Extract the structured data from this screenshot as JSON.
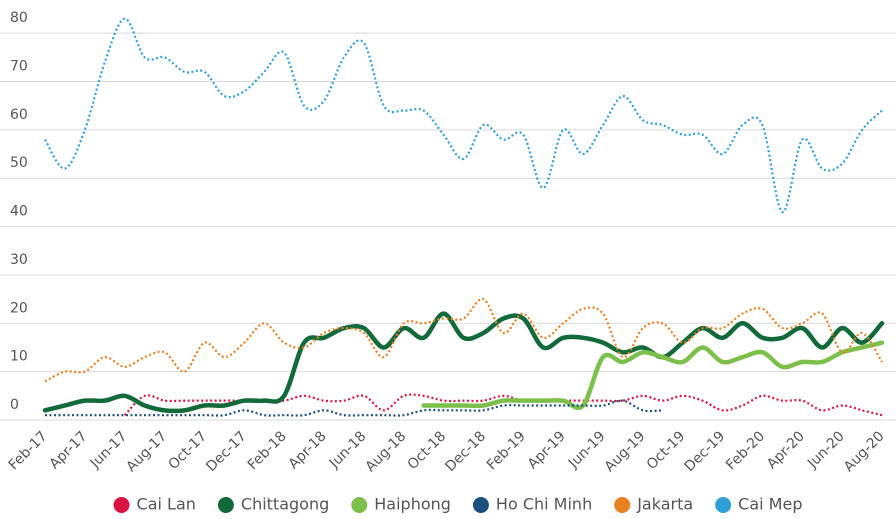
{
  "chart_data": {
    "type": "line",
    "categories": [
      "Feb-17",
      null,
      "Apr-17",
      null,
      "Jun-17",
      null,
      "Aug-17",
      null,
      "Oct-17",
      null,
      "Dec-17",
      null,
      "Feb-18",
      null,
      "Apr-18",
      null,
      "Jun-18",
      null,
      "Aug-18",
      null,
      "Oct-18",
      null,
      "Dec-18",
      null,
      "Feb-19",
      null,
      "Apr-19",
      null,
      "Jun-19",
      null,
      "Aug-19",
      null,
      "Oct-19",
      null,
      "Dec-19",
      null,
      "Feb-20",
      null,
      "Apr-20",
      null,
      "Jun-20",
      null,
      "Aug-20"
    ],
    "series": [
      {
        "name": "Cai Lan",
        "color": "#d9123f",
        "dash": "dotted",
        "values": [
          null,
          null,
          null,
          null,
          1,
          5,
          4,
          4,
          4,
          4,
          4,
          4,
          4,
          5,
          4,
          4,
          5,
          2,
          5,
          5,
          4,
          4,
          4,
          5,
          4,
          4,
          4,
          4,
          4,
          4,
          5,
          4,
          5,
          4,
          2,
          3,
          5,
          4,
          4,
          2,
          3,
          2,
          1
        ]
      },
      {
        "name": "Chittagong",
        "color": "#12693a",
        "dash": "solid",
        "values": [
          2,
          3,
          4,
          4,
          5,
          3,
          2,
          2,
          3,
          3,
          4,
          4,
          5,
          16,
          17,
          19,
          19,
          15,
          19,
          17,
          22,
          17,
          18,
          21,
          21,
          15,
          17,
          17,
          16,
          14,
          15,
          13,
          16,
          19,
          17,
          20,
          17,
          17,
          19,
          15,
          19,
          16,
          20
        ]
      },
      {
        "name": "Haiphong",
        "color": "#7cc04b",
        "dash": "solid",
        "values": [
          null,
          null,
          null,
          null,
          null,
          null,
          null,
          null,
          null,
          null,
          null,
          null,
          null,
          null,
          null,
          null,
          null,
          null,
          null,
          3,
          3,
          3,
          3,
          4,
          4,
          4,
          4,
          3,
          13,
          12,
          14,
          13,
          12,
          15,
          12,
          13,
          14,
          11,
          12,
          12,
          14,
          15,
          16
        ]
      },
      {
        "name": "Ho Chi Minh",
        "color": "#1a4f7e",
        "dash": "dotted",
        "values": [
          1,
          1,
          1,
          1,
          1,
          1,
          1,
          1,
          1,
          1,
          2,
          1,
          1,
          1,
          2,
          1,
          1,
          1,
          1,
          2,
          2,
          2,
          2,
          3,
          3,
          3,
          3,
          3,
          3,
          4,
          2,
          2,
          null,
          null,
          null,
          null,
          null,
          null,
          null,
          null,
          null,
          null,
          null
        ]
      },
      {
        "name": "Jakarta",
        "color": "#e8801e",
        "dash": "dotted",
        "values": [
          8,
          10,
          10,
          13,
          11,
          13,
          14,
          10,
          16,
          13,
          16,
          20,
          16,
          15,
          18,
          19,
          18,
          13,
          20,
          20,
          21,
          21,
          25,
          18,
          22,
          17,
          20,
          23,
          22,
          13,
          19,
          20,
          16,
          19,
          19,
          22,
          23,
          19,
          20,
          22,
          14,
          18,
          12
        ]
      },
      {
        "name": "Cai Mep",
        "color": "#2f9fd8",
        "dash": "dotted",
        "values": [
          58,
          52,
          60,
          74,
          83,
          75,
          75,
          72,
          72,
          67,
          68,
          72,
          76,
          65,
          66,
          75,
          78,
          65,
          64,
          64,
          59,
          54,
          61,
          58,
          59,
          48,
          60,
          55,
          61,
          67,
          62,
          61,
          59,
          59,
          55,
          61,
          61,
          43,
          58,
          52,
          53,
          60,
          64
        ]
      }
    ],
    "ylim": [
      0,
      85
    ],
    "yticks": [
      0,
      10,
      20,
      30,
      40,
      50,
      60,
      70,
      80
    ],
    "grid": true,
    "legend": "bottom"
  }
}
